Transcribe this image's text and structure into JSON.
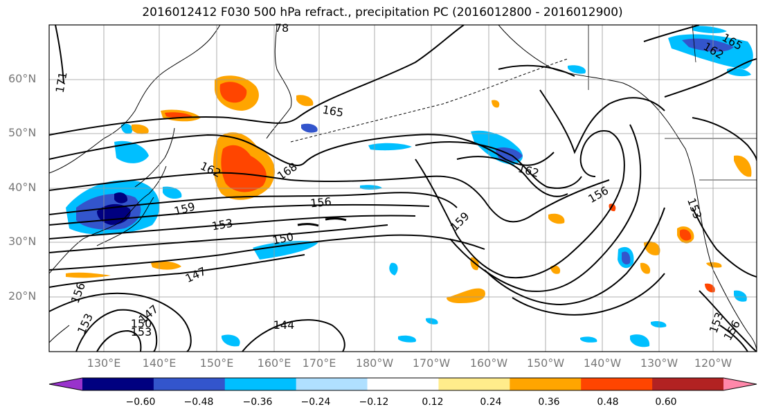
{
  "title": "2016012412 F030 500 hPa refract., precipitation PC (2016012800 - 2016012900)",
  "lat_labels": [
    "60°N",
    "50°N",
    "40°N",
    "30°N",
    "20°N"
  ],
  "lon_labels": [
    "130°E",
    "140°E",
    "150°E",
    "160°E",
    "170°E",
    "180°W",
    "170°W",
    "160°W",
    "150°W",
    "140°W",
    "130°W",
    "120°W"
  ],
  "contour_labels": [
    "171",
    "165",
    "162",
    "168",
    "162",
    "159",
    "156",
    "153",
    "150",
    "159",
    "156",
    "153",
    "147",
    "156",
    "153",
    "147",
    "150",
    "153",
    "144",
    "153",
    "156",
    "165",
    "162",
    "78"
  ],
  "colorbar": {
    "ticks": [
      "−0.60",
      "−0.48",
      "−0.36",
      "−0.24",
      "−0.12",
      "0.12",
      "0.24",
      "0.36",
      "0.48",
      "0.60"
    ],
    "colors": [
      "#9933cc",
      "#000080",
      "#3355cc",
      "#00bfff",
      "#b0e0ff",
      "#ffffff",
      "#ffec8b",
      "#ffa500",
      "#ff4500",
      "#b22222",
      "#ff88aa"
    ]
  }
}
